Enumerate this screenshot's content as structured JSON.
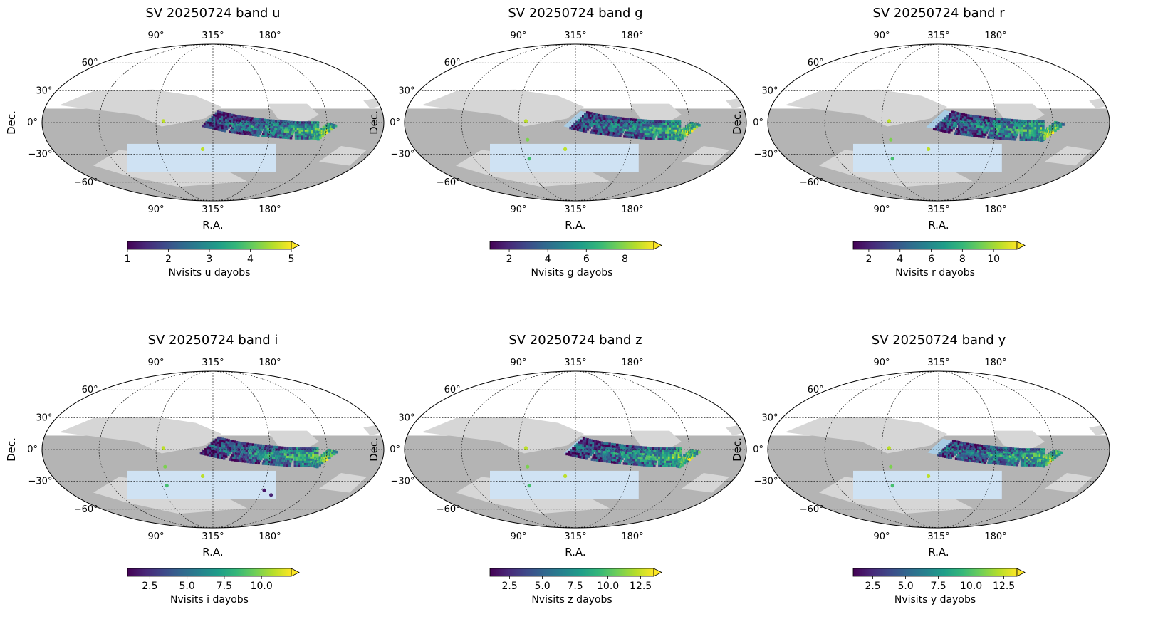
{
  "figure": {
    "xlabel": "R.A.",
    "ylabel": "Dec.",
    "lon_tick_labels": [
      "90°",
      "315°",
      "180°"
    ],
    "lat_tick_labels": [
      "60°",
      "30°",
      "0°",
      "−30°",
      "−60°"
    ]
  },
  "colors": {
    "footprint_dark": "#b4b4b4",
    "footprint_light": "#d6d6d6",
    "region_blue_dark": "#a9cce4",
    "region_blue_light": "#cfe2f3",
    "colormap": "viridis"
  },
  "chart_data": [
    {
      "type": "heatmap",
      "projection": "mollweide",
      "title": "SV 20250724 band u",
      "band": "u",
      "colorbar": {
        "label": "Nvisits u dayobs",
        "min": 1,
        "max": 5,
        "ticks": [
          "1",
          "2",
          "3",
          "4",
          "5"
        ],
        "extend": "max"
      }
    },
    {
      "type": "heatmap",
      "projection": "mollweide",
      "title": "SV 20250724 band g",
      "band": "g",
      "colorbar": {
        "label": "Nvisits g dayobs",
        "min": 1,
        "max": 9.5,
        "ticks": [
          "2",
          "4",
          "6",
          "8"
        ],
        "extend": "max"
      }
    },
    {
      "type": "heatmap",
      "projection": "mollweide",
      "title": "SV 20250724 band r",
      "band": "r",
      "colorbar": {
        "label": "Nvisits r dayobs",
        "min": 1,
        "max": 11.5,
        "ticks": [
          "2",
          "4",
          "6",
          "8",
          "10"
        ],
        "extend": "max"
      }
    },
    {
      "type": "heatmap",
      "projection": "mollweide",
      "title": "SV 20250724 band i",
      "band": "i",
      "colorbar": {
        "label": "Nvisits i dayobs",
        "min": 1,
        "max": 12,
        "ticks": [
          "2.5",
          "5.0",
          "7.5",
          "10.0"
        ],
        "extend": "max"
      }
    },
    {
      "type": "heatmap",
      "projection": "mollweide",
      "title": "SV 20250724 band z",
      "band": "z",
      "colorbar": {
        "label": "Nvisits z dayobs",
        "min": 1,
        "max": 13.5,
        "ticks": [
          "2.5",
          "5.0",
          "7.5",
          "10.0",
          "12.5"
        ],
        "extend": "max"
      }
    },
    {
      "type": "heatmap",
      "projection": "mollweide",
      "title": "SV 20250724 band y",
      "band": "y",
      "colorbar": {
        "label": "Nvisits y dayobs",
        "min": 1,
        "max": 13.5,
        "ticks": [
          "2.5",
          "5.0",
          "7.5",
          "10.0",
          "12.5"
        ],
        "extend": "max"
      }
    }
  ]
}
